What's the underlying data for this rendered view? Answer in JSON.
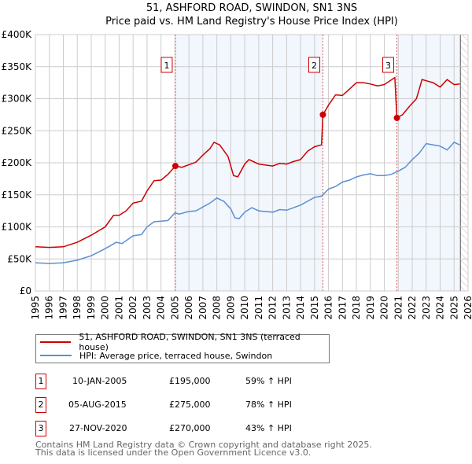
{
  "chart_data": {
    "type": "line",
    "title": "51, ASHFORD ROAD, SWINDON, SN1 3NS",
    "subtitle": "Price paid vs. HM Land Registry's House Price Index (HPI)",
    "xlabel": "",
    "ylabel": "",
    "xlim": [
      1995,
      2026
    ],
    "ylim": [
      0,
      400000
    ],
    "x_ticks": [
      "1995",
      "1996",
      "1997",
      "1998",
      "1999",
      "2000",
      "2001",
      "2002",
      "2003",
      "2004",
      "2005",
      "2006",
      "2007",
      "2008",
      "2009",
      "2010",
      "2011",
      "2012",
      "2013",
      "2014",
      "2015",
      "2016",
      "2017",
      "2018",
      "2019",
      "2020",
      "2021",
      "2022",
      "2023",
      "2024",
      "2025",
      "2026"
    ],
    "y_ticks": [
      {
        "v": 0,
        "label": "£0"
      },
      {
        "v": 50000,
        "label": "£50K"
      },
      {
        "v": 100000,
        "label": "£100K"
      },
      {
        "v": 150000,
        "label": "£150K"
      },
      {
        "v": 200000,
        "label": "£200K"
      },
      {
        "v": 250000,
        "label": "£250K"
      },
      {
        "v": 300000,
        "label": "£300K"
      },
      {
        "v": 350000,
        "label": "£350K"
      },
      {
        "v": 400000,
        "label": "£400K"
      }
    ],
    "grid": true,
    "series": [
      {
        "name": "51, ASHFORD ROAD, SWINDON, SN1 3NS (terraced house)",
        "color": "#cc0000",
        "x": [
          1995,
          1996,
          1997,
          1998,
          1999,
          2000,
          2000.6,
          2001,
          2001.5,
          2002,
          2002.6,
          2003,
          2003.5,
          2004,
          2004.5,
          2005.03,
          2005.5,
          2006,
          2006.5,
          2007,
          2007.5,
          2007.8,
          2008.2,
          2008.8,
          2009.2,
          2009.5,
          2010,
          2010.3,
          2011,
          2012,
          2012.5,
          2013,
          2013.5,
          2014,
          2014.5,
          2015,
          2015.5,
          2015.6,
          2016,
          2016.5,
          2017,
          2017.5,
          2018,
          2018.5,
          2019,
          2019.5,
          2020,
          2020.75,
          2020.9,
          2021.3,
          2021.8,
          2022.3,
          2022.7,
          2023,
          2023.5,
          2024,
          2024.5,
          2025,
          2025.4
        ],
        "y": [
          69000,
          68000,
          69000,
          76000,
          87000,
          100000,
          118000,
          118000,
          125000,
          137000,
          140000,
          156000,
          172000,
          173000,
          182000,
          195000,
          193000,
          197000,
          201000,
          212000,
          222000,
          232000,
          228000,
          210000,
          180000,
          178000,
          198000,
          205000,
          198000,
          195000,
          199000,
          198000,
          202000,
          205000,
          218000,
          225000,
          228000,
          275000,
          290000,
          306000,
          305000,
          315000,
          325000,
          325000,
          323000,
          320000,
          322000,
          333000,
          270000,
          275000,
          288000,
          300000,
          330000,
          328000,
          325000,
          318000,
          330000,
          322000,
          323000
        ]
      },
      {
        "name": "HPI: Average price, terraced house, Swindon",
        "color": "#5b8fd4",
        "x": [
          1995,
          1996,
          1997,
          1998,
          1999,
          2000,
          2000.8,
          2001.2,
          2002,
          2002.6,
          2003,
          2003.5,
          2004,
          2004.5,
          2005,
          2005.3,
          2006,
          2006.5,
          2007,
          2007.5,
          2008,
          2008.5,
          2009,
          2009.3,
          2009.6,
          2010,
          2010.5,
          2011,
          2012,
          2012.5,
          2013,
          2013.5,
          2014,
          2014.5,
          2015,
          2015.5,
          2016,
          2016.5,
          2017,
          2017.5,
          2018,
          2018.5,
          2019,
          2019.5,
          2020,
          2020.5,
          2021,
          2021.5,
          2022,
          2022.5,
          2023,
          2023.5,
          2024,
          2024.5,
          2025,
          2025.4
        ],
        "y": [
          44000,
          43000,
          44000,
          48000,
          55000,
          66000,
          76000,
          74000,
          86000,
          88000,
          100000,
          108000,
          109000,
          110000,
          122000,
          120000,
          124000,
          125000,
          131000,
          137000,
          145000,
          140000,
          128000,
          114000,
          113000,
          123000,
          130000,
          125000,
          123000,
          127000,
          126000,
          130000,
          134000,
          140000,
          146000,
          148000,
          159000,
          163000,
          170000,
          173000,
          178000,
          181000,
          183000,
          180000,
          180000,
          182000,
          187000,
          193000,
          205000,
          215000,
          230000,
          228000,
          226000,
          220000,
          232000,
          228000
        ]
      }
    ],
    "sales": [
      {
        "label": "1",
        "x": 2005.03,
        "y": 195000
      },
      {
        "label": "2",
        "x": 2015.6,
        "y": 275000
      },
      {
        "label": "3",
        "x": 2020.9,
        "y": 270000
      }
    ],
    "shaded_ranges": [
      [
        2005.03,
        2015.6
      ],
      [
        2020.9,
        2025.45
      ]
    ],
    "data_end": 2025.45,
    "legend_position": "bottom"
  },
  "legend": {
    "property": "51, ASHFORD ROAD, SWINDON, SN1 3NS (terraced house)",
    "hpi": "HPI: Average price, terraced house, Swindon"
  },
  "transactions": [
    {
      "num": "1",
      "date": "10-JAN-2005",
      "price": "£195,000",
      "hpi": "59% ↑ HPI"
    },
    {
      "num": "2",
      "date": "05-AUG-2015",
      "price": "£275,000",
      "hpi": "78% ↑ HPI"
    },
    {
      "num": "3",
      "date": "27-NOV-2020",
      "price": "£270,000",
      "hpi": "43% ↑ HPI"
    }
  ],
  "footer": {
    "line1": "Contains HM Land Registry data © Crown copyright and database right 2025.",
    "line2": "This data is licensed under the Open Government Licence v3.0."
  }
}
